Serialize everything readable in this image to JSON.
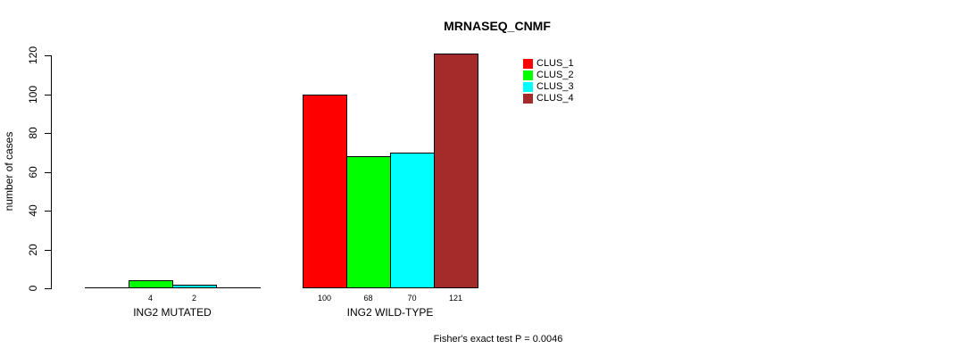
{
  "chart_data": {
    "type": "bar",
    "title": "MRNASEQ_CNMF",
    "ylabel": "number of cases",
    "xlabel": "",
    "ylim": [
      0,
      120
    ],
    "yticks": [
      0,
      20,
      40,
      60,
      80,
      100,
      120
    ],
    "categories": [
      "ING2 MUTATED",
      "ING2 WILD-TYPE"
    ],
    "series": [
      {
        "name": "CLUS_1",
        "color": "#ff0000",
        "values": [
          0,
          100
        ]
      },
      {
        "name": "CLUS_2",
        "color": "#00ff00",
        "values": [
          4,
          68
        ]
      },
      {
        "name": "CLUS_3",
        "color": "#00ffff",
        "values": [
          2,
          70
        ]
      },
      {
        "name": "CLUS_4",
        "color": "#a52a2a",
        "values": [
          0,
          121
        ]
      }
    ],
    "bar_value_labels": [
      [
        "",
        "4",
        "2",
        ""
      ],
      [
        "100",
        "68",
        "70",
        "121"
      ]
    ],
    "legend": {
      "position": "top-right",
      "entries": [
        {
          "label": "CLUS_1",
          "color": "#ff0000"
        },
        {
          "label": "CLUS_2",
          "color": "#00ff00"
        },
        {
          "label": "CLUS_3",
          "color": "#00ffff"
        },
        {
          "label": "CLUS_4",
          "color": "#a52a2a"
        }
      ]
    },
    "annotation": "Fisher's exact test P = 0.0046",
    "grid": false,
    "axis_color": "#000000",
    "background": "#ffffff",
    "text_color": "#000000"
  }
}
